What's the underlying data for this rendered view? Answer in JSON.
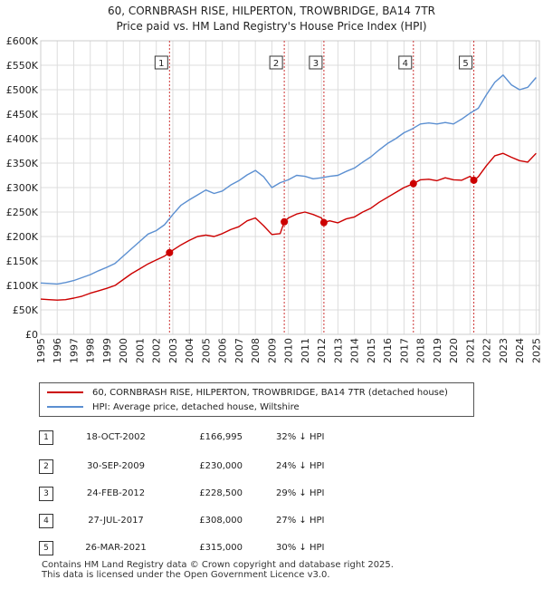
{
  "title_line1": "60, CORNBRASH RISE, HILPERTON, TROWBRIDGE, BA14 7TR",
  "title_line2": "Price paid vs. HM Land Registry's House Price Index (HPI)",
  "colors": {
    "price": "#cc0000",
    "hpi": "#5b8fd1",
    "marker_line": "#cc3333",
    "grid": "#dddddd"
  },
  "chart_data": {
    "type": "line",
    "title": "Price paid vs. HM Land Registry's House Price Index (HPI)",
    "xlabel": "",
    "ylabel": "",
    "xlim": [
      1995,
      2025.2
    ],
    "ylim": [
      0,
      600000
    ],
    "y_ticks": [
      0,
      50000,
      100000,
      150000,
      200000,
      250000,
      300000,
      350000,
      400000,
      450000,
      500000,
      550000,
      600000
    ],
    "y_tick_labels": [
      "£0",
      "£50K",
      "£100K",
      "£150K",
      "£200K",
      "£250K",
      "£300K",
      "£350K",
      "£400K",
      "£450K",
      "£500K",
      "£550K",
      "£600K"
    ],
    "x_ticks": [
      1995,
      1996,
      1997,
      1998,
      1999,
      2000,
      2001,
      2002,
      2003,
      2004,
      2005,
      2006,
      2007,
      2008,
      2009,
      2010,
      2011,
      2012,
      2013,
      2014,
      2015,
      2016,
      2017,
      2018,
      2019,
      2020,
      2021,
      2022,
      2023,
      2024,
      2025
    ],
    "x_tick_labels": [
      "1995",
      "1996",
      "1997",
      "1998",
      "1999",
      "2000",
      "2001",
      "2002",
      "2003",
      "2004",
      "2005",
      "2006",
      "2007",
      "2008",
      "2009",
      "2010",
      "2011",
      "2012",
      "2013",
      "2014",
      "2015",
      "2016",
      "2017",
      "2018",
      "2019",
      "2020",
      "2021",
      "2022",
      "2023",
      "2024",
      "2025"
    ],
    "grid": true,
    "series": [
      {
        "name": "60, CORNBRASH RISE, HILPERTON, TROWBRIDGE, BA14 7TR (detached house)",
        "color": "#cc0000",
        "x": [
          1995.0,
          1995.5,
          1996.0,
          1996.5,
          1997.0,
          1997.5,
          1998.0,
          1998.5,
          1999.0,
          1999.5,
          2000.0,
          2000.5,
          2001.0,
          2001.5,
          2002.0,
          2002.5,
          2002.8,
          2003.0,
          2003.5,
          2004.0,
          2004.5,
          2005.0,
          2005.5,
          2006.0,
          2006.5,
          2007.0,
          2007.5,
          2008.0,
          2008.5,
          2009.0,
          2009.5,
          2009.75,
          2010.0,
          2010.5,
          2011.0,
          2011.5,
          2012.0,
          2012.15,
          2012.5,
          2013.0,
          2013.5,
          2014.0,
          2014.5,
          2015.0,
          2015.5,
          2016.0,
          2016.5,
          2017.0,
          2017.57,
          2018.0,
          2018.5,
          2019.0,
          2019.5,
          2020.0,
          2020.5,
          2021.0,
          2021.23,
          2021.5,
          2022.0,
          2022.5,
          2023.0,
          2023.5,
          2024.0,
          2024.5,
          2025.0
        ],
        "values": [
          72000,
          71000,
          70000,
          71000,
          74000,
          78000,
          84000,
          89000,
          94000,
          100000,
          112000,
          124000,
          134000,
          144000,
          152000,
          160000,
          166995,
          172000,
          183000,
          192000,
          200000,
          203000,
          200000,
          206000,
          214000,
          220000,
          232000,
          238000,
          222000,
          204000,
          206000,
          230000,
          238000,
          246000,
          250000,
          245000,
          238000,
          228500,
          232000,
          228000,
          236000,
          240000,
          250000,
          258000,
          270000,
          280000,
          290000,
          300000,
          308000,
          316000,
          317000,
          314000,
          320000,
          316000,
          315000,
          323000,
          315000,
          322000,
          345000,
          365000,
          370000,
          362000,
          355000,
          352000,
          370000
        ]
      },
      {
        "name": "HPI: Average price, detached house, Wiltshire",
        "color": "#5b8fd1",
        "x": [
          1995.0,
          1995.5,
          1996.0,
          1996.5,
          1997.0,
          1997.5,
          1998.0,
          1998.5,
          1999.0,
          1999.5,
          2000.0,
          2000.5,
          2001.0,
          2001.5,
          2002.0,
          2002.5,
          2003.0,
          2003.5,
          2004.0,
          2004.5,
          2005.0,
          2005.5,
          2006.0,
          2006.5,
          2007.0,
          2007.5,
          2008.0,
          2008.5,
          2009.0,
          2009.5,
          2010.0,
          2010.5,
          2011.0,
          2011.5,
          2012.0,
          2012.5,
          2013.0,
          2013.5,
          2014.0,
          2014.5,
          2015.0,
          2015.5,
          2016.0,
          2016.5,
          2017.0,
          2017.5,
          2018.0,
          2018.5,
          2019.0,
          2019.5,
          2020.0,
          2020.5,
          2021.0,
          2021.5,
          2022.0,
          2022.5,
          2023.0,
          2023.5,
          2024.0,
          2024.5,
          2025.0
        ],
        "values": [
          105000,
          104000,
          103000,
          106000,
          110000,
          116000,
          122000,
          130000,
          137000,
          145000,
          160000,
          175000,
          190000,
          205000,
          212000,
          224000,
          245000,
          264000,
          275000,
          285000,
          295000,
          288000,
          293000,
          305000,
          314000,
          326000,
          335000,
          322000,
          300000,
          310000,
          316000,
          325000,
          323000,
          318000,
          320000,
          323000,
          325000,
          333000,
          340000,
          352000,
          363000,
          377000,
          390000,
          400000,
          412000,
          420000,
          430000,
          432000,
          430000,
          433000,
          430000,
          440000,
          452000,
          462000,
          490000,
          515000,
          530000,
          510000,
          500000,
          505000,
          525000
        ]
      }
    ],
    "markers": [
      {
        "label": "1",
        "x": 2002.8,
        "value": 166995
      },
      {
        "label": "2",
        "x": 2009.75,
        "value": 230000
      },
      {
        "label": "3",
        "x": 2012.15,
        "value": 228500
      },
      {
        "label": "4",
        "x": 2017.57,
        "value": 308000
      },
      {
        "label": "5",
        "x": 2021.23,
        "value": 315000
      }
    ]
  },
  "legend": {
    "price_label": "60, CORNBRASH RISE, HILPERTON, TROWBRIDGE, BA14 7TR (detached house)",
    "hpi_label": "HPI: Average price, detached house, Wiltshire"
  },
  "transactions": [
    {
      "num": "1",
      "date": "18-OCT-2002",
      "price": "£166,995",
      "hpi": "32% ↓ HPI"
    },
    {
      "num": "2",
      "date": "30-SEP-2009",
      "price": "£230,000",
      "hpi": "24% ↓ HPI"
    },
    {
      "num": "3",
      "date": "24-FEB-2012",
      "price": "£228,500",
      "hpi": "29% ↓ HPI"
    },
    {
      "num": "4",
      "date": "27-JUL-2017",
      "price": "£308,000",
      "hpi": "27% ↓ HPI"
    },
    {
      "num": "5",
      "date": "26-MAR-2021",
      "price": "£315,000",
      "hpi": "30% ↓ HPI"
    }
  ],
  "footer_line1": "Contains HM Land Registry data © Crown copyright and database right 2025.",
  "footer_line2": "This data is licensed under the Open Government Licence v3.0."
}
